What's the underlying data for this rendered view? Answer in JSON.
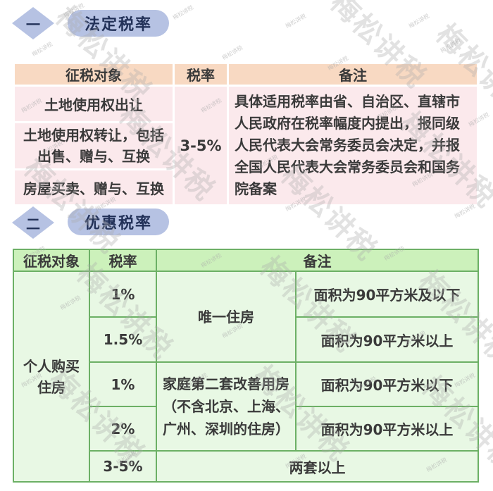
{
  "watermark": {
    "text": "梅松讲税"
  },
  "sections": [
    {
      "number": "一",
      "title": "法定税率"
    },
    {
      "number": "二",
      "title": "优惠税率"
    }
  ],
  "statutory_table": {
    "headers": {
      "object": "征税对象",
      "rate": "税率",
      "remark": "备注"
    },
    "rows": [
      "土地使用权出让",
      "土地使用权转让，包括出售、赠与、互换",
      "房屋买卖、赠与、互换"
    ],
    "rate": "3-5%",
    "remark": "具体适用税率由省、自治区、直辖市人民政府在税率幅度内提出，报同级人民代表大会常务委员会决定，并报全国人民代表大会常务委员会和国务院备案"
  },
  "preferential_table": {
    "headers": {
      "object": "征税对象",
      "rate": "税率",
      "remark": "备注"
    },
    "object": "个人购买住房",
    "rows": [
      {
        "rate": "1%",
        "category": "唯一住房",
        "condition": "面积为90平方米及以下"
      },
      {
        "rate": "1.5%",
        "condition": "面积为90平方米以上"
      },
      {
        "rate": "1%",
        "category": "家庭第二套改善用房（不含北京、上海、广州、深圳的住房）",
        "condition": "面积为90平方米以下"
      },
      {
        "rate": "2%",
        "condition": "面积为90平方米以上"
      },
      {
        "rate": "3-5%",
        "condition": "两套以上"
      }
    ]
  },
  "colors": {
    "accent_blue": "#b6c2e3",
    "accent_blue_text": "#223158",
    "pink_header": "#f8d9c2",
    "pink_body": "#fbe9ec",
    "green_header": "#ccf1bb",
    "green_body": "#e8f8e4",
    "green_border": "#6cb065",
    "text": "#3a3a3a",
    "watermark_gray": "#aaaaaa"
  }
}
